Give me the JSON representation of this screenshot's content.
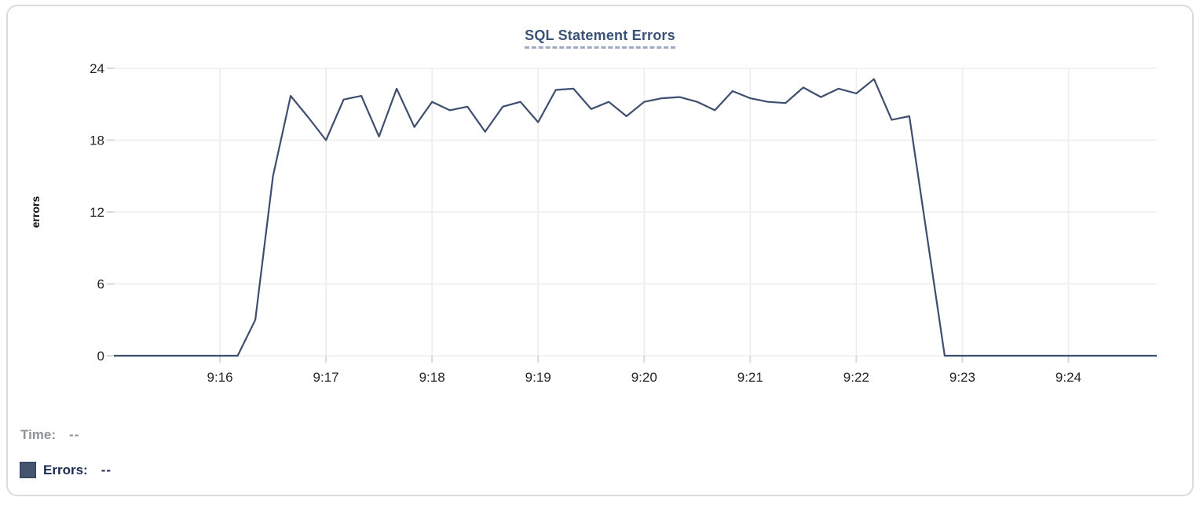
{
  "header": {
    "title": "SQL Statement Errors"
  },
  "footer": {
    "time_label": "Time:",
    "time_value": "--",
    "errors_label": "Errors:",
    "errors_value": "--"
  },
  "colors": {
    "line": "#3e4e6e",
    "legend_swatch": "#44536e",
    "legend_swatch_border": "#313f59",
    "title_text": "#3b5277",
    "title_underline": "#a0abc1",
    "time_text": "#8d9197",
    "errors_text": "#1b2850",
    "grid_line": "#ededef",
    "tick_mark": "#d9d9dc",
    "axis_tick_text": "#222529",
    "axis_title_text": "#0d0e10",
    "card_border": "#dadce1",
    "background": "#ffffff"
  },
  "chart_data": {
    "type": "line",
    "title": "SQL Statement Errors",
    "xlabel": "",
    "ylabel": "errors",
    "ylim": [
      0,
      24
    ],
    "y_ticks": [
      0,
      6,
      12,
      18,
      24
    ],
    "grid": true,
    "legend_position": "below-left",
    "x_domain": {
      "start": "9:15:00",
      "end": "9:24:50"
    },
    "x_ticks": [
      {
        "label": "9:16",
        "t": "9:16:00"
      },
      {
        "label": "9:17",
        "t": "9:17:00"
      },
      {
        "label": "9:18",
        "t": "9:18:00"
      },
      {
        "label": "9:19",
        "t": "9:19:00"
      },
      {
        "label": "9:20",
        "t": "9:20:00"
      },
      {
        "label": "9:21",
        "t": "9:21:00"
      },
      {
        "label": "9:22",
        "t": "9:22:00"
      },
      {
        "label": "9:23",
        "t": "9:23:00"
      },
      {
        "label": "9:24",
        "t": "9:24:00"
      }
    ],
    "series": [
      {
        "name": "Errors",
        "color": "#3e4e6e",
        "start": "9:15:00",
        "interval_seconds": 10,
        "values": [
          0,
          0,
          0,
          0,
          0,
          0,
          0,
          0,
          3,
          15,
          21.7,
          19.9,
          18,
          21.4,
          21.7,
          18.3,
          22.3,
          19.1,
          21.2,
          20.5,
          20.8,
          18.7,
          20.8,
          21.2,
          19.5,
          22.2,
          22.3,
          20.6,
          21.2,
          20,
          21.2,
          21.5,
          21.6,
          21.2,
          20.5,
          22.1,
          21.5,
          21.2,
          21.1,
          22.4,
          21.6,
          22.3,
          21.9,
          23.1,
          19.7,
          20,
          10,
          0,
          0,
          0,
          0,
          0,
          0,
          0,
          0,
          0,
          0,
          0,
          0,
          0
        ]
      }
    ]
  }
}
